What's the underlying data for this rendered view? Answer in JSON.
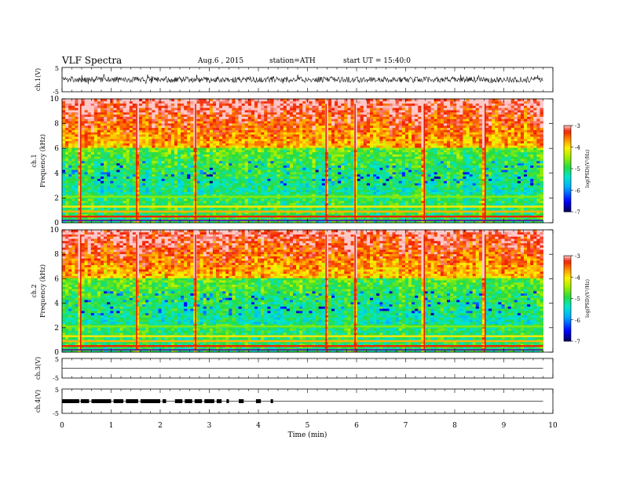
{
  "header": {
    "title": "VLF  Spectra",
    "date": "Aug.6  , 2015",
    "station": "station=ATH",
    "start": "start  UT  =    15:40:0"
  },
  "chart_data": [
    {
      "type": "line",
      "ylabel": "ch.1(V)",
      "ylim": [
        -5,
        5
      ],
      "yticks": [
        "5",
        "-5"
      ],
      "signal": "dense noisy waveform, amplitude about ±1.5 V with spikes to about ±2 V"
    },
    {
      "type": "heatmap",
      "channel": "ch.1",
      "ylabel": "Frequency (kHz)",
      "ylim": [
        0,
        10
      ],
      "yticks": [
        "0",
        "2",
        "4",
        "6",
        "8",
        "10"
      ],
      "colorbar": {
        "label": "log(PSD)(V²/Hz)",
        "ticks": [
          "-3",
          "-4",
          "-5",
          "-6",
          "-7"
        ],
        "range": [
          -7,
          -3
        ]
      },
      "impulsive_event_min": [
        0.38,
        1.52,
        2.72,
        5.38,
        5.97,
        7.38,
        8.62
      ],
      "bands_khz": [
        {
          "f": 0.5,
          "level": -3.3
        },
        {
          "f": 0.9,
          "level": -3.8
        },
        {
          "f": 1.3,
          "level": -4.0
        },
        {
          "f": 2.1,
          "level": -4.6
        }
      ]
    },
    {
      "type": "heatmap",
      "channel": "ch.2",
      "ylabel": "Frequency (kHz)",
      "ylim": [
        0,
        10
      ],
      "yticks": [
        "0",
        "2",
        "4",
        "6",
        "8",
        "10"
      ],
      "colorbar": {
        "label": "log(PSD)(V²/Hz)",
        "ticks": [
          "-3",
          "-4",
          "-5",
          "-6",
          "-7"
        ],
        "range": [
          -7,
          -3
        ]
      },
      "impulsive_event_min": [
        0.38,
        1.52,
        2.72,
        5.38,
        5.97,
        7.38,
        8.62
      ],
      "bands_khz": [
        {
          "f": 0.5,
          "level": -3.3
        },
        {
          "f": 0.9,
          "level": -3.8
        },
        {
          "f": 1.3,
          "level": -4.0
        },
        {
          "f": 2.1,
          "level": -4.6
        }
      ]
    },
    {
      "type": "line",
      "ylabel": "ch.3(V)",
      "ylim": [
        -5,
        5
      ],
      "yticks": [
        "5",
        "-5"
      ],
      "signal": "flat trace near 0 V"
    },
    {
      "type": "line",
      "ylabel": "ch.4(V)",
      "ylim": [
        -5,
        5
      ],
      "yticks": [
        "5",
        "-5"
      ],
      "signal": "flat trace near 0 V with thick pulse segments from 0 to 4.3 min",
      "pulse_segments_min": [
        [
          0.0,
          0.35
        ],
        [
          0.38,
          0.55
        ],
        [
          0.6,
          1.0
        ],
        [
          1.05,
          1.25
        ],
        [
          1.3,
          1.55
        ],
        [
          1.6,
          2.0
        ],
        [
          2.05,
          2.12
        ],
        [
          2.3,
          2.45
        ],
        [
          2.5,
          2.65
        ],
        [
          2.7,
          2.85
        ],
        [
          2.9,
          3.1
        ],
        [
          3.15,
          3.25
        ],
        [
          3.35,
          3.4
        ],
        [
          3.6,
          3.7
        ],
        [
          3.95,
          4.05
        ],
        [
          4.25,
          4.3
        ]
      ]
    }
  ],
  "xaxis": {
    "label": "Time  (min)",
    "range": [
      0,
      10
    ],
    "ticks": [
      "0",
      "1",
      "2",
      "3",
      "4",
      "5",
      "6",
      "7",
      "8",
      "9",
      "10"
    ],
    "data_end": 9.8
  }
}
